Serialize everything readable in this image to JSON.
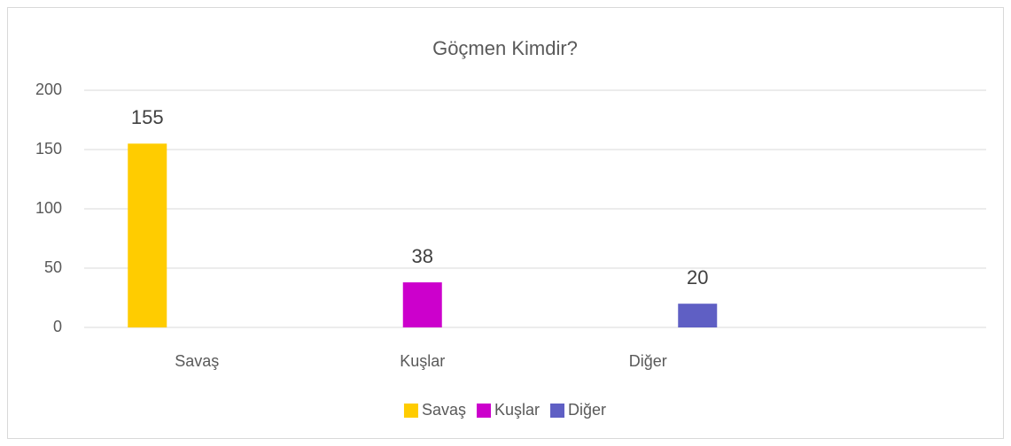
{
  "chart_data": {
    "type": "bar",
    "title": "Göçmen Kimdir?",
    "categories": [
      "Savaş",
      "Kuşlar",
      "Diğer",
      null
    ],
    "series": [
      {
        "name": "Savaş",
        "color": "#ffcc00",
        "values": [
          155,
          null,
          null,
          null
        ]
      },
      {
        "name": "Kuşlar",
        "color": "#cc00cc",
        "values": [
          null,
          38,
          null,
          null
        ]
      },
      {
        "name": "Diğer",
        "color": "#5f5fc4",
        "values": [
          null,
          null,
          20,
          null
        ]
      }
    ],
    "ylim": [
      0,
      200
    ],
    "yticks": [
      0,
      50,
      100,
      150,
      200
    ],
    "grid": true,
    "legend": "bottom"
  }
}
